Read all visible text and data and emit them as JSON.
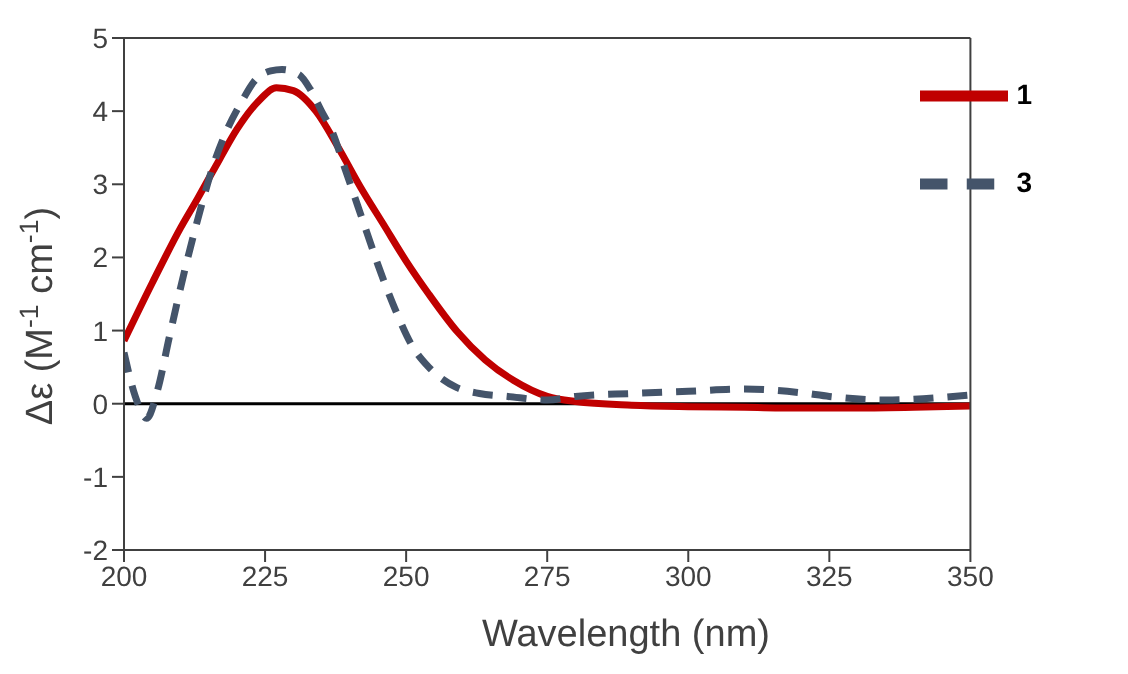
{
  "chart_data": {
    "type": "line",
    "xlabel": "Wavelength (nm)",
    "ylabel": "Δε (M$^{-1}$ cm$^{-1}$)",
    "xlim": [
      200,
      350
    ],
    "xticks": [
      200,
      225,
      250,
      275,
      300,
      325,
      350
    ],
    "ylim": [
      -2,
      5
    ],
    "yticks": [
      -2,
      -1,
      0,
      1,
      2,
      3,
      4,
      5
    ],
    "legend": "top right",
    "marker": "none",
    "ref_lines": [
      {
        "axis": "y",
        "value": 0,
        "color": "#000000"
      }
    ],
    "series": [
      {
        "name": "1",
        "color": "#c00000",
        "line_style": "solid",
        "x": [
          200,
          205,
          210,
          213,
          217,
          220,
          224,
          227,
          230,
          234,
          238,
          242,
          246,
          250,
          254,
          259,
          264,
          269,
          275,
          280,
          290,
          300,
          310,
          320,
          330,
          340,
          350
        ],
        "values": [
          0.86,
          1.65,
          2.4,
          2.8,
          3.35,
          3.75,
          4.15,
          4.32,
          4.28,
          4.0,
          3.5,
          2.95,
          2.45,
          1.95,
          1.5,
          0.99,
          0.6,
          0.32,
          0.1,
          0.03,
          -0.02,
          -0.04,
          -0.05,
          -0.06,
          -0.06,
          -0.05,
          -0.03
        ]
      },
      {
        "name": "3",
        "color": "#44546a",
        "line_style": "dashed",
        "x": [
          200,
          202,
          204,
          206,
          208,
          211,
          213,
          216,
          218,
          221,
          223,
          226,
          228,
          231,
          233,
          235,
          237,
          239,
          241,
          243,
          245,
          248,
          251,
          254,
          256,
          259,
          263,
          268,
          275,
          280,
          290,
          300,
          310,
          320,
          325,
          335,
          350
        ],
        "values": [
          0.7,
          0.1,
          -0.2,
          0.2,
          0.9,
          1.9,
          2.5,
          3.3,
          3.7,
          4.15,
          4.4,
          4.55,
          4.57,
          4.5,
          4.3,
          4.0,
          3.7,
          3.25,
          2.8,
          2.35,
          1.9,
          1.3,
          0.8,
          0.5,
          0.36,
          0.22,
          0.14,
          0.1,
          0.05,
          0.1,
          0.14,
          0.17,
          0.2,
          0.15,
          0.1,
          0.05,
          0.12
        ]
      }
    ]
  }
}
